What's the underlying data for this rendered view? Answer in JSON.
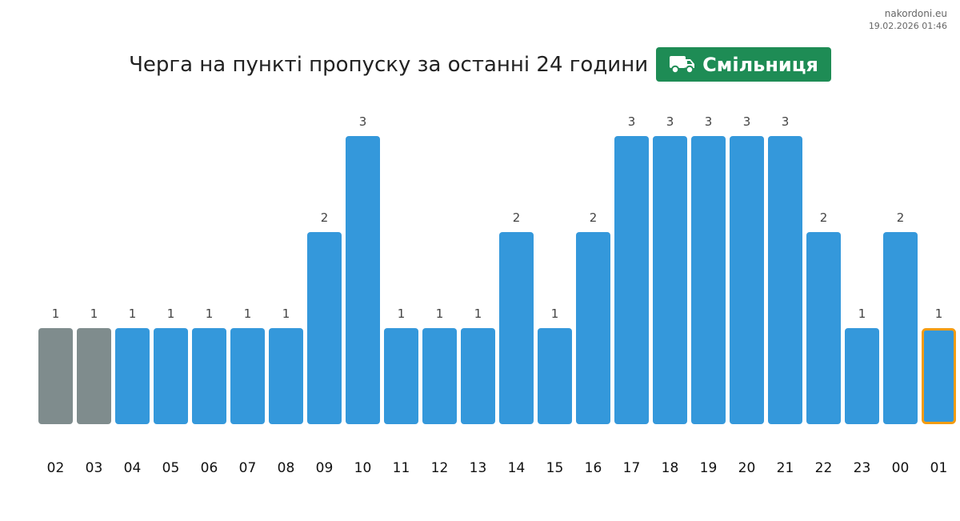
{
  "source": {
    "site": "nakordoni.eu",
    "timestamp": "19.02.2026 01:46"
  },
  "header": {
    "title": "Черга на пункті пропуску за останні 24 години",
    "checkpoint": "Смільниця",
    "checkpoint_icon": "truck-icon",
    "checkpoint_color": "#1e8c55"
  },
  "chart_data": {
    "type": "bar",
    "title": "Черга на пункті пропуску за останні 24 години",
    "xlabel": "",
    "ylabel": "",
    "ylim": [
      0,
      3
    ],
    "grid": false,
    "categories": [
      "02",
      "03",
      "04",
      "05",
      "06",
      "07",
      "08",
      "09",
      "10",
      "11",
      "12",
      "13",
      "14",
      "15",
      "16",
      "17",
      "18",
      "19",
      "20",
      "21",
      "22",
      "23",
      "00",
      "01"
    ],
    "values": [
      1,
      1,
      1,
      1,
      1,
      1,
      1,
      2,
      3,
      1,
      1,
      1,
      2,
      1,
      2,
      3,
      3,
      3,
      3,
      3,
      2,
      1,
      2,
      1
    ],
    "colors": {
      "default": "#3498db",
      "past_day": "#7f8c8d",
      "current_outline": "#f39c12"
    },
    "past_day_categories": [
      "02",
      "03"
    ],
    "current_category": "01"
  }
}
